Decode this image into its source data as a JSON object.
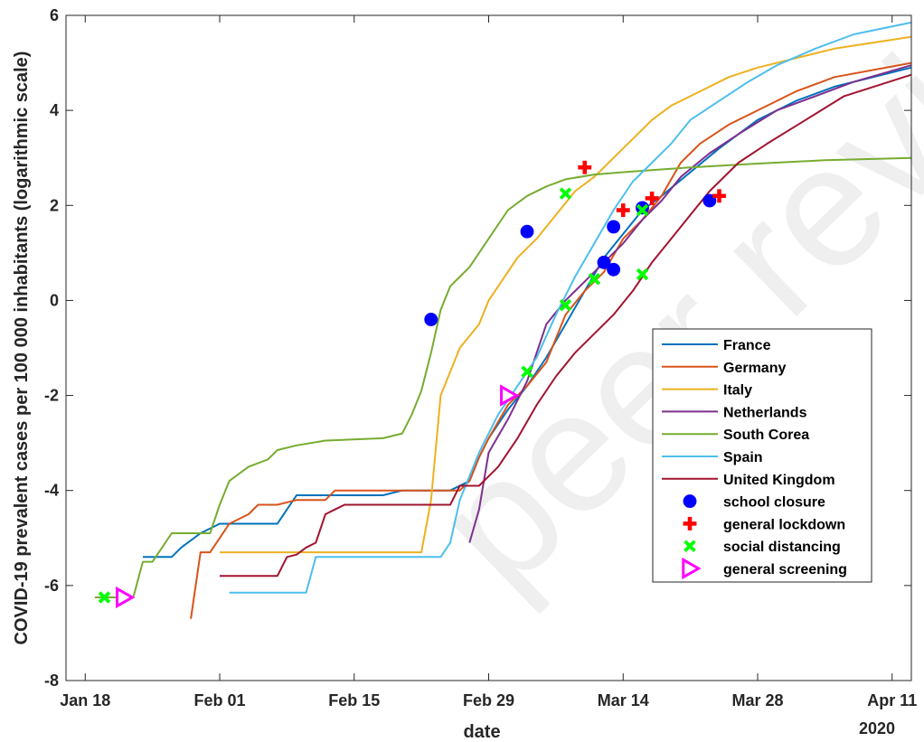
{
  "watermark": "peer review",
  "chart_data": {
    "type": "line",
    "xlabel": "date",
    "ylabel": "COVID-19 prevalent cases per 100 000 inhabitants (logarithmic scale)",
    "xlim": [
      "2020-01-16",
      "2020-04-13"
    ],
    "ylim": [
      -8,
      6
    ],
    "x_ticks": [
      {
        "date": "2020-01-18",
        "label": "Jan 18"
      },
      {
        "date": "2020-02-01",
        "label": "Feb 01"
      },
      {
        "date": "2020-02-15",
        "label": "Feb 15"
      },
      {
        "date": "2020-02-29",
        "label": "Feb 29"
      },
      {
        "date": "2020-03-14",
        "label": "Mar 14"
      },
      {
        "date": "2020-03-28",
        "label": "Mar 28"
      },
      {
        "date": "2020-04-11",
        "label": "Apr 11"
      }
    ],
    "x_secondary_label": "2020",
    "y_ticks": [
      -8,
      -6,
      -4,
      -2,
      0,
      2,
      4,
      6
    ],
    "grid": false,
    "legend_position": "right",
    "series": [
      {
        "name": "France",
        "color": "#0072BD",
        "points": [
          [
            "2020-01-24",
            -5.4
          ],
          [
            "2020-01-27",
            -5.4
          ],
          [
            "2020-01-28",
            -5.2
          ],
          [
            "2020-01-30",
            -4.9
          ],
          [
            "2020-02-01",
            -4.7
          ],
          [
            "2020-02-07",
            -4.7
          ],
          [
            "2020-02-08",
            -4.4
          ],
          [
            "2020-02-09",
            -4.1
          ],
          [
            "2020-02-15",
            -4.1
          ],
          [
            "2020-02-18",
            -4.1
          ],
          [
            "2020-02-20",
            -4.0
          ],
          [
            "2020-02-25",
            -4.0
          ],
          [
            "2020-02-27",
            -3.8
          ],
          [
            "2020-02-28",
            -3.3
          ],
          [
            "2020-02-29",
            -2.9
          ],
          [
            "2020-03-01",
            -2.6
          ],
          [
            "2020-03-02",
            -2.3
          ],
          [
            "2020-03-04",
            -1.8
          ],
          [
            "2020-03-06",
            -1.2
          ],
          [
            "2020-03-08",
            -0.5
          ],
          [
            "2020-03-10",
            0.2
          ],
          [
            "2020-03-12",
            0.9
          ],
          [
            "2020-03-14",
            1.4
          ],
          [
            "2020-03-16",
            1.9
          ],
          [
            "2020-03-18",
            2.2
          ],
          [
            "2020-03-21",
            2.7
          ],
          [
            "2020-03-24",
            3.2
          ],
          [
            "2020-03-28",
            3.8
          ],
          [
            "2020-04-01",
            4.2
          ],
          [
            "2020-04-05",
            4.5
          ],
          [
            "2020-04-13",
            4.9
          ]
        ]
      },
      {
        "name": "Germany",
        "color": "#D95319",
        "points": [
          [
            "2020-01-29",
            -6.7
          ],
          [
            "2020-01-30",
            -5.3
          ],
          [
            "2020-01-31",
            -5.3
          ],
          [
            "2020-02-01",
            -5.0
          ],
          [
            "2020-02-02",
            -4.7
          ],
          [
            "2020-02-04",
            -4.5
          ],
          [
            "2020-02-05",
            -4.3
          ],
          [
            "2020-02-07",
            -4.3
          ],
          [
            "2020-02-09",
            -4.2
          ],
          [
            "2020-02-12",
            -4.2
          ],
          [
            "2020-02-13",
            -4.0
          ],
          [
            "2020-02-25",
            -4.0
          ],
          [
            "2020-02-26",
            -4.0
          ],
          [
            "2020-02-27",
            -3.8
          ],
          [
            "2020-02-28",
            -3.3
          ],
          [
            "2020-02-29",
            -2.9
          ],
          [
            "2020-03-02",
            -2.2
          ],
          [
            "2020-03-04",
            -1.8
          ],
          [
            "2020-03-06",
            -1.3
          ],
          [
            "2020-03-08",
            -0.3
          ],
          [
            "2020-03-10",
            0.2
          ],
          [
            "2020-03-12",
            0.6
          ],
          [
            "2020-03-14",
            1.3
          ],
          [
            "2020-03-16",
            1.7
          ],
          [
            "2020-03-18",
            2.2
          ],
          [
            "2020-03-20",
            2.9
          ],
          [
            "2020-03-22",
            3.3
          ],
          [
            "2020-03-25",
            3.7
          ],
          [
            "2020-03-28",
            4.0
          ],
          [
            "2020-04-01",
            4.4
          ],
          [
            "2020-04-05",
            4.7
          ],
          [
            "2020-04-13",
            5.0
          ]
        ]
      },
      {
        "name": "Italy",
        "color": "#EDB120",
        "points": [
          [
            "2020-02-01",
            -5.3
          ],
          [
            "2020-02-22",
            -5.3
          ],
          [
            "2020-02-23",
            -4.2
          ],
          [
            "2020-02-24",
            -2.0
          ],
          [
            "2020-02-26",
            -1.0
          ],
          [
            "2020-02-28",
            -0.5
          ],
          [
            "2020-02-29",
            0.0
          ],
          [
            "2020-03-01",
            0.3
          ],
          [
            "2020-03-03",
            0.9
          ],
          [
            "2020-03-05",
            1.3
          ],
          [
            "2020-03-07",
            1.8
          ],
          [
            "2020-03-09",
            2.3
          ],
          [
            "2020-03-11",
            2.6
          ],
          [
            "2020-03-13",
            3.0
          ],
          [
            "2020-03-15",
            3.4
          ],
          [
            "2020-03-17",
            3.8
          ],
          [
            "2020-03-19",
            4.1
          ],
          [
            "2020-03-22",
            4.4
          ],
          [
            "2020-03-25",
            4.7
          ],
          [
            "2020-03-28",
            4.9
          ],
          [
            "2020-04-01",
            5.1
          ],
          [
            "2020-04-05",
            5.3
          ],
          [
            "2020-04-13",
            5.55
          ]
        ]
      },
      {
        "name": "Netherlands",
        "color": "#7E2F8E",
        "points": [
          [
            "2020-02-27",
            -5.1
          ],
          [
            "2020-02-28",
            -4.4
          ],
          [
            "2020-02-29",
            -3.2
          ],
          [
            "2020-03-02",
            -2.5
          ],
          [
            "2020-03-04",
            -1.7
          ],
          [
            "2020-03-06",
            -0.5
          ],
          [
            "2020-03-08",
            0.0
          ],
          [
            "2020-03-10",
            0.4
          ],
          [
            "2020-03-12",
            0.8
          ],
          [
            "2020-03-14",
            1.2
          ],
          [
            "2020-03-16",
            1.7
          ],
          [
            "2020-03-18",
            2.1
          ],
          [
            "2020-03-20",
            2.6
          ],
          [
            "2020-03-23",
            3.1
          ],
          [
            "2020-03-26",
            3.5
          ],
          [
            "2020-03-30",
            4.0
          ],
          [
            "2020-04-03",
            4.3
          ],
          [
            "2020-04-07",
            4.6
          ],
          [
            "2020-04-13",
            4.95
          ]
        ]
      },
      {
        "name": "South Corea",
        "color": "#77AC30",
        "points": [
          [
            "2020-01-19",
            -6.25
          ],
          [
            "2020-01-23",
            -6.25
          ],
          [
            "2020-01-24",
            -5.5
          ],
          [
            "2020-01-25",
            -5.5
          ],
          [
            "2020-01-26",
            -5.2
          ],
          [
            "2020-01-27",
            -4.9
          ],
          [
            "2020-01-31",
            -4.9
          ],
          [
            "2020-02-01",
            -4.3
          ],
          [
            "2020-02-02",
            -3.8
          ],
          [
            "2020-02-04",
            -3.5
          ],
          [
            "2020-02-06",
            -3.35
          ],
          [
            "2020-02-07",
            -3.15
          ],
          [
            "2020-02-09",
            -3.05
          ],
          [
            "2020-02-12",
            -2.95
          ],
          [
            "2020-02-18",
            -2.9
          ],
          [
            "2020-02-20",
            -2.8
          ],
          [
            "2020-02-21",
            -2.4
          ],
          [
            "2020-02-22",
            -1.9
          ],
          [
            "2020-02-23",
            -1.1
          ],
          [
            "2020-02-24",
            -0.2
          ],
          [
            "2020-02-25",
            0.3
          ],
          [
            "2020-02-27",
            0.7
          ],
          [
            "2020-02-29",
            1.3
          ],
          [
            "2020-03-02",
            1.9
          ],
          [
            "2020-03-04",
            2.2
          ],
          [
            "2020-03-06",
            2.4
          ],
          [
            "2020-03-08",
            2.55
          ],
          [
            "2020-03-11",
            2.65
          ],
          [
            "2020-03-14",
            2.7
          ],
          [
            "2020-03-21",
            2.8
          ],
          [
            "2020-03-28",
            2.88
          ],
          [
            "2020-04-04",
            2.95
          ],
          [
            "2020-04-13",
            3.0
          ]
        ]
      },
      {
        "name": "Spain",
        "color": "#4DBEEE",
        "points": [
          [
            "2020-02-02",
            -6.15
          ],
          [
            "2020-02-10",
            -6.15
          ],
          [
            "2020-02-11",
            -5.4
          ],
          [
            "2020-02-24",
            -5.4
          ],
          [
            "2020-02-25",
            -5.1
          ],
          [
            "2020-02-26",
            -4.2
          ],
          [
            "2020-02-27",
            -3.7
          ],
          [
            "2020-02-28",
            -3.2
          ],
          [
            "2020-02-29",
            -2.8
          ],
          [
            "2020-03-01",
            -2.4
          ],
          [
            "2020-03-03",
            -1.8
          ],
          [
            "2020-03-05",
            -1.2
          ],
          [
            "2020-03-07",
            -0.3
          ],
          [
            "2020-03-09",
            0.5
          ],
          [
            "2020-03-11",
            1.2
          ],
          [
            "2020-03-13",
            1.9
          ],
          [
            "2020-03-15",
            2.5
          ],
          [
            "2020-03-17",
            2.9
          ],
          [
            "2020-03-19",
            3.3
          ],
          [
            "2020-03-21",
            3.8
          ],
          [
            "2020-03-24",
            4.2
          ],
          [
            "2020-03-27",
            4.6
          ],
          [
            "2020-03-30",
            4.95
          ],
          [
            "2020-04-03",
            5.3
          ],
          [
            "2020-04-07",
            5.6
          ],
          [
            "2020-04-13",
            5.85
          ]
        ]
      },
      {
        "name": "United Kingdom",
        "color": "#A2142F",
        "points": [
          [
            "2020-02-01",
            -5.8
          ],
          [
            "2020-02-07",
            -5.8
          ],
          [
            "2020-02-08",
            -5.4
          ],
          [
            "2020-02-09",
            -5.35
          ],
          [
            "2020-02-10",
            -5.2
          ],
          [
            "2020-02-11",
            -5.1
          ],
          [
            "2020-02-12",
            -4.5
          ],
          [
            "2020-02-13",
            -4.4
          ],
          [
            "2020-02-14",
            -4.3
          ],
          [
            "2020-02-25",
            -4.3
          ],
          [
            "2020-02-26",
            -3.9
          ],
          [
            "2020-02-28",
            -3.9
          ],
          [
            "2020-03-01",
            -3.5
          ],
          [
            "2020-03-03",
            -2.9
          ],
          [
            "2020-03-05",
            -2.2
          ],
          [
            "2020-03-07",
            -1.6
          ],
          [
            "2020-03-09",
            -1.1
          ],
          [
            "2020-03-11",
            -0.7
          ],
          [
            "2020-03-13",
            -0.3
          ],
          [
            "2020-03-15",
            0.2
          ],
          [
            "2020-03-17",
            0.8
          ],
          [
            "2020-03-19",
            1.3
          ],
          [
            "2020-03-21",
            1.8
          ],
          [
            "2020-03-23",
            2.3
          ],
          [
            "2020-03-26",
            2.9
          ],
          [
            "2020-03-29",
            3.3
          ],
          [
            "2020-04-02",
            3.8
          ],
          [
            "2020-04-06",
            4.3
          ],
          [
            "2020-04-13",
            4.75
          ]
        ]
      }
    ],
    "markers": [
      {
        "name": "school closure",
        "symbol": "circle",
        "color": "#0000FF",
        "points": [
          [
            "2020-02-23",
            -0.4
          ],
          [
            "2020-03-04",
            1.45
          ],
          [
            "2020-03-12",
            0.8
          ],
          [
            "2020-03-13",
            0.65
          ],
          [
            "2020-03-13",
            1.55
          ],
          [
            "2020-03-16",
            1.95
          ],
          [
            "2020-03-23",
            2.1
          ]
        ]
      },
      {
        "name": "general lockdown",
        "symbol": "plus",
        "color": "#FF0000",
        "points": [
          [
            "2020-03-10",
            2.8
          ],
          [
            "2020-03-14",
            1.9
          ],
          [
            "2020-03-17",
            2.15
          ],
          [
            "2020-03-24",
            2.2
          ]
        ]
      },
      {
        "name": "social distancing",
        "symbol": "x",
        "color": "#00FF00",
        "points": [
          [
            "2020-01-20",
            -6.25
          ],
          [
            "2020-03-04",
            -1.5
          ],
          [
            "2020-03-08",
            -0.1
          ],
          [
            "2020-03-08",
            2.25
          ],
          [
            "2020-03-11",
            0.45
          ],
          [
            "2020-03-16",
            0.55
          ],
          [
            "2020-03-16",
            1.9
          ]
        ]
      },
      {
        "name": "general screening",
        "symbol": "triangle-right",
        "color": "#FF00FF",
        "points": [
          [
            "2020-01-22",
            -6.25
          ],
          [
            "2020-03-02",
            -2.0
          ]
        ]
      }
    ]
  }
}
